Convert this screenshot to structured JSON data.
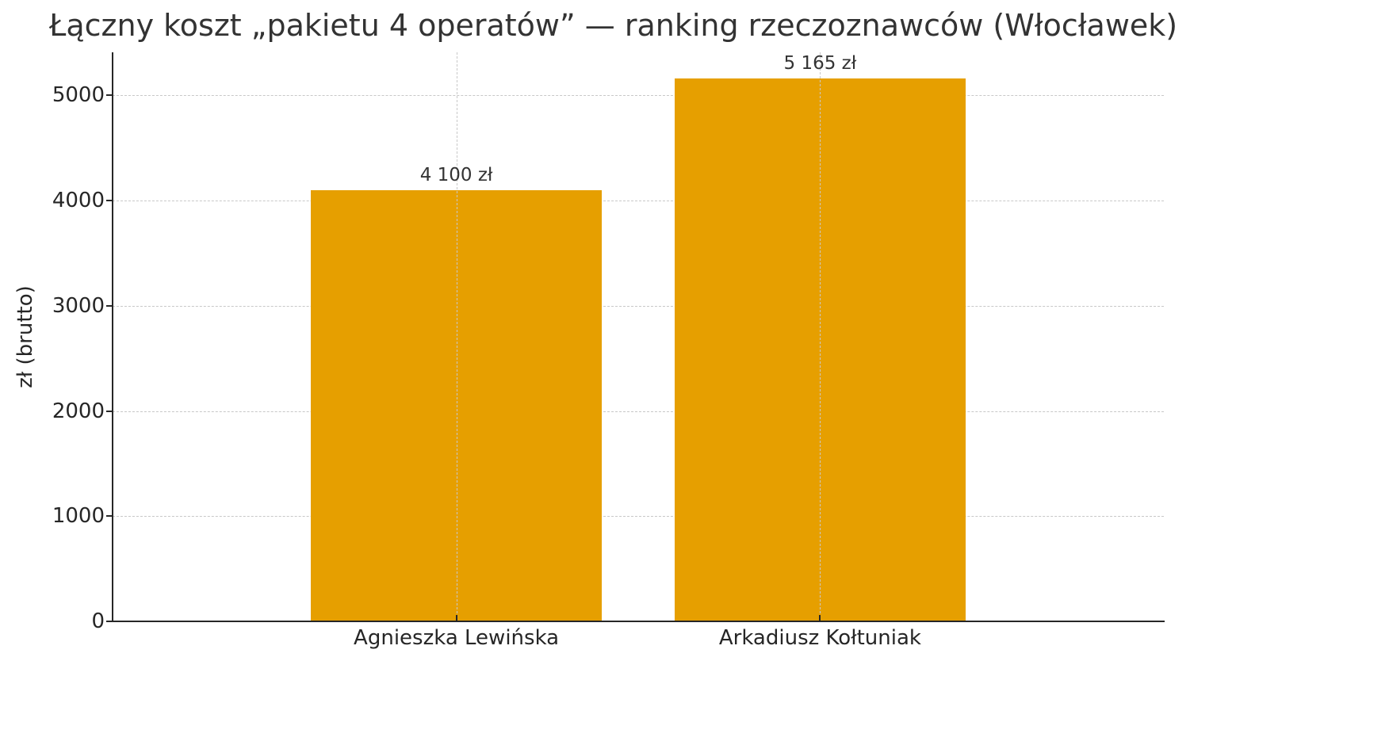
{
  "chart_data": {
    "type": "bar",
    "title": "Łączny koszt „pakietu 4 operatów” — ranking rzeczoznawców (Włocławek)",
    "xlabel": "",
    "ylabel": "zł (brutto)",
    "categories": [
      "Agnieszka Lewińska",
      "Arkadiusz Kołtuniak"
    ],
    "values": [
      4100,
      5165
    ],
    "value_labels": [
      "4 100 zł",
      "5 165 zł"
    ],
    "ylim": [
      0,
      5410
    ],
    "yticks": [
      0,
      1000,
      2000,
      3000,
      4000,
      5000
    ],
    "ytick_labels": [
      "0",
      "1000",
      "2000",
      "3000",
      "4000",
      "5000"
    ],
    "grid": true,
    "grid_style": "dashed",
    "legend": null,
    "colors": {
      "bar": "#E69F00",
      "grid": "#c8c8c8",
      "axis": "#262626",
      "text": "#333333"
    }
  }
}
